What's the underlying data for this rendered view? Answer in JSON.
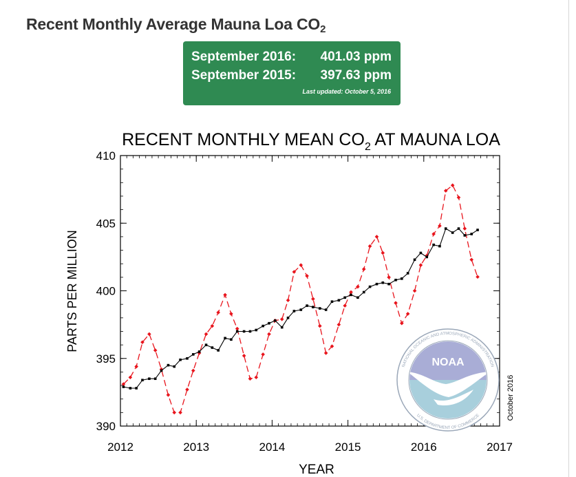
{
  "page": {
    "heading": "Recent Monthly Average Mauna Loa CO",
    "heading_sub": "2"
  },
  "stats": {
    "row1_label": "September 2016:",
    "row1_value": "401.03 ppm",
    "row2_label": "September 2015:",
    "row2_value": "397.63 ppm",
    "updated": "Last updated: October 5, 2016"
  },
  "chart_data": {
    "type": "line",
    "title_main": "RECENT MONTHLY MEAN CO",
    "title_sub": "2",
    "title_end": " AT MAUNA LOA",
    "xlabel": "YEAR",
    "ylabel": "PARTS PER MILLION",
    "xlim": [
      2012,
      2017
    ],
    "ylim": [
      390,
      410
    ],
    "xticks": [
      2012,
      2013,
      2014,
      2015,
      2016,
      2017
    ],
    "yticks": [
      390,
      395,
      400,
      405,
      410
    ],
    "date_note": "October 2016",
    "logo_text": "NOAA",
    "logo_ring_top": "NATIONAL OCEANIC AND ATMOSPHERIC ADMINISTRATION",
    "logo_ring_bottom": "U.S. DEPARTMENT OF COMMERCE",
    "series": [
      {
        "style": "red-dashed-diamonds",
        "color": "#e8141c",
        "x": [
          2012.04,
          2012.13,
          2012.21,
          2012.29,
          2012.38,
          2012.46,
          2012.54,
          2012.63,
          2012.71,
          2012.79,
          2012.88,
          2012.96,
          2013.04,
          2013.13,
          2013.21,
          2013.29,
          2013.38,
          2013.46,
          2013.54,
          2013.63,
          2013.71,
          2013.79,
          2013.88,
          2013.96,
          2014.04,
          2014.13,
          2014.21,
          2014.29,
          2014.38,
          2014.46,
          2014.54,
          2014.63,
          2014.71,
          2014.79,
          2014.88,
          2014.96,
          2015.04,
          2015.13,
          2015.21,
          2015.29,
          2015.38,
          2015.46,
          2015.54,
          2015.63,
          2015.71,
          2015.79,
          2015.88,
          2015.96,
          2016.04,
          2016.13,
          2016.21,
          2016.29,
          2016.38,
          2016.46,
          2016.54,
          2016.63,
          2016.71
        ],
        "values": [
          393.1,
          393.6,
          394.4,
          396.2,
          396.8,
          395.6,
          394.2,
          392.3,
          391.0,
          391.0,
          392.7,
          394.1,
          395.4,
          396.8,
          397.4,
          398.4,
          399.7,
          398.3,
          397.2,
          395.2,
          393.5,
          393.6,
          395.3,
          396.8,
          397.8,
          397.9,
          399.3,
          401.4,
          401.9,
          401.1,
          399.4,
          397.4,
          395.4,
          395.9,
          397.5,
          398.9,
          399.9,
          400.3,
          401.6,
          403.3,
          404.0,
          402.8,
          401.0,
          399.1,
          397.6,
          398.3,
          400.0,
          401.9,
          402.6,
          404.2,
          404.8,
          407.4,
          407.8,
          406.9,
          404.6,
          402.3,
          401.03
        ]
      },
      {
        "style": "black-solid-squares",
        "color": "#000000",
        "x": [
          2012.04,
          2012.13,
          2012.21,
          2012.29,
          2012.38,
          2012.46,
          2012.54,
          2012.63,
          2012.71,
          2012.79,
          2012.88,
          2012.96,
          2013.04,
          2013.13,
          2013.21,
          2013.29,
          2013.38,
          2013.46,
          2013.54,
          2013.63,
          2013.71,
          2013.79,
          2013.88,
          2013.96,
          2014.04,
          2014.13,
          2014.21,
          2014.29,
          2014.38,
          2014.46,
          2014.54,
          2014.63,
          2014.71,
          2014.79,
          2014.88,
          2014.96,
          2015.04,
          2015.13,
          2015.21,
          2015.29,
          2015.38,
          2015.46,
          2015.54,
          2015.63,
          2015.71,
          2015.79,
          2015.88,
          2015.96,
          2016.04,
          2016.13,
          2016.21,
          2016.29,
          2016.38,
          2016.46,
          2016.54,
          2016.63,
          2016.71
        ],
        "values": [
          392.9,
          392.8,
          392.8,
          393.4,
          393.5,
          393.5,
          394.1,
          394.5,
          394.4,
          394.9,
          395.0,
          395.3,
          395.5,
          396.0,
          395.8,
          395.6,
          396.5,
          396.4,
          397.0,
          397.0,
          397.0,
          397.1,
          397.4,
          397.6,
          397.8,
          397.3,
          398.0,
          398.5,
          398.6,
          398.9,
          398.8,
          398.7,
          398.6,
          399.2,
          399.3,
          399.5,
          399.7,
          399.5,
          399.9,
          400.3,
          400.5,
          400.6,
          400.5,
          400.8,
          400.9,
          401.3,
          402.3,
          402.8,
          402.5,
          403.4,
          403.3,
          404.6,
          404.3,
          404.6,
          404.1,
          404.2,
          404.5
        ]
      }
    ]
  }
}
